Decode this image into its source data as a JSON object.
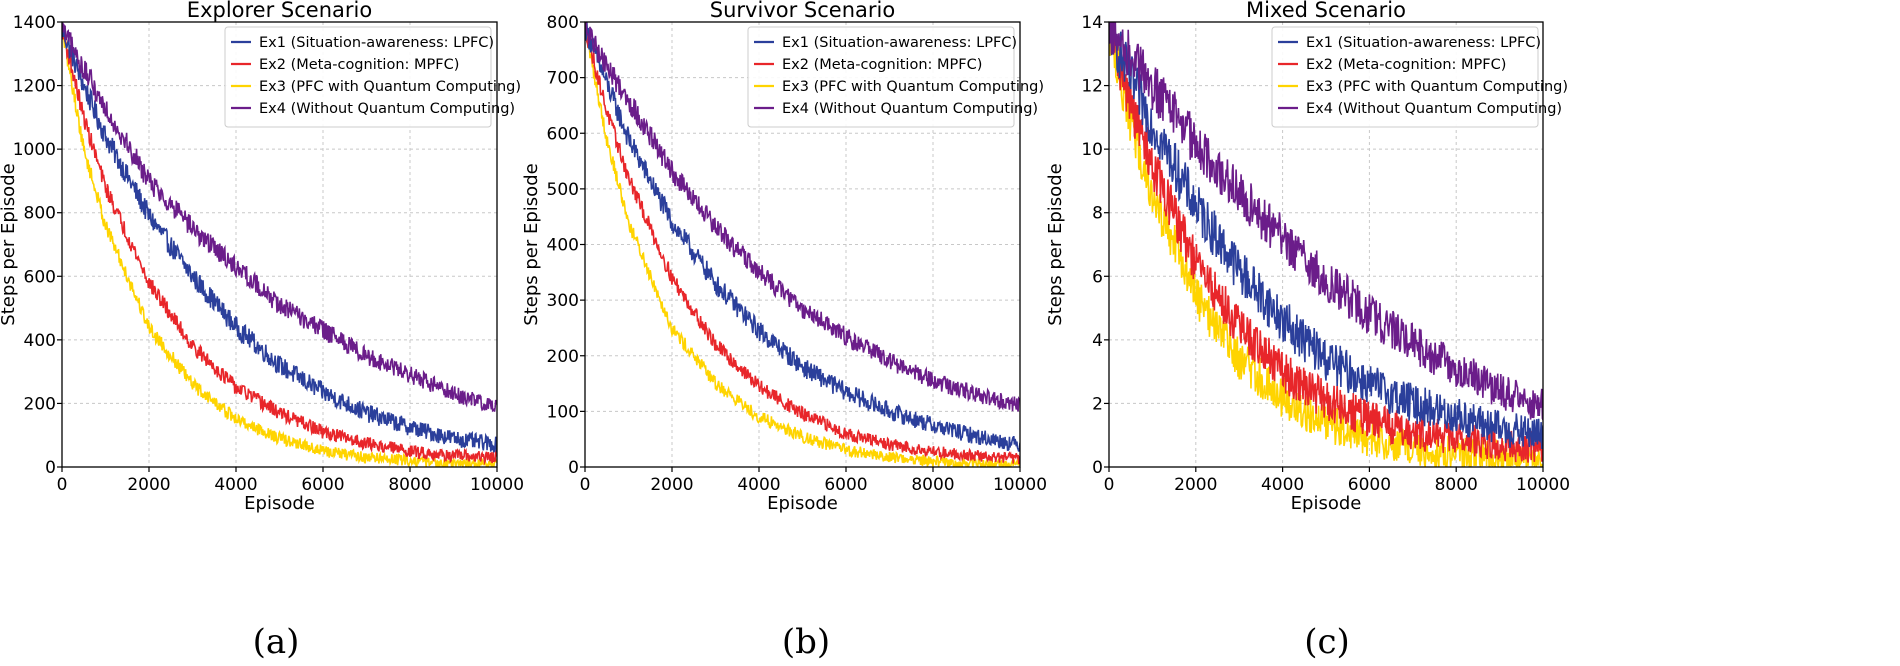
{
  "chart_data": [
    {
      "type": "line",
      "title": "Explorer Scenario",
      "xlabel": "Episode",
      "ylabel": "Steps per Episode",
      "xlim": [
        0,
        10000
      ],
      "ylim": [
        0,
        1400
      ],
      "xticks": [
        0,
        2000,
        4000,
        6000,
        8000,
        10000
      ],
      "yticks": [
        0,
        200,
        400,
        600,
        800,
        1000,
        1200,
        1400
      ],
      "grid": true,
      "legend": "top-right",
      "caption": "(a)",
      "series": [
        {
          "name": "Ex1 (Situation-awareness: LPFC)",
          "color": "#2b3f9b",
          "x": [
            0,
            500,
            1000,
            2000,
            3000,
            4000,
            5000,
            6000,
            7000,
            8000,
            9000,
            10000
          ],
          "values": [
            1380,
            1200,
            1040,
            790,
            600,
            440,
            320,
            235,
            170,
            125,
            90,
            70
          ],
          "noise": 25
        },
        {
          "name": "Ex2 (Meta-cognition: MPFC)",
          "color": "#e8262a",
          "x": [
            0,
            500,
            1000,
            2000,
            3000,
            4000,
            5000,
            6000,
            7000,
            8000,
            9000,
            10000
          ],
          "values": [
            1380,
            1100,
            880,
            580,
            380,
            250,
            170,
            110,
            75,
            50,
            35,
            30
          ],
          "noise": 18
        },
        {
          "name": "Ex3 (PFC with Quantum Computing)",
          "color": "#ffd400",
          "x": [
            0,
            500,
            1000,
            2000,
            3000,
            4000,
            5000,
            6000,
            7000,
            8000,
            9000,
            10000
          ],
          "values": [
            1380,
            1000,
            760,
            440,
            260,
            150,
            90,
            50,
            30,
            20,
            12,
            8
          ],
          "noise": 16
        },
        {
          "name": "Ex4 (Without Quantum Computing)",
          "color": "#6b1d8a",
          "x": [
            0,
            500,
            1000,
            2000,
            3000,
            4000,
            5000,
            6000,
            7000,
            8000,
            9000,
            10000
          ],
          "values": [
            1380,
            1250,
            1130,
            900,
            750,
            630,
            510,
            430,
            350,
            290,
            230,
            190
          ],
          "noise": 25
        }
      ]
    },
    {
      "type": "line",
      "title": "Survivor Scenario",
      "xlabel": "Episode",
      "ylabel": "Steps per Episode",
      "xlim": [
        0,
        10000
      ],
      "ylim": [
        0,
        800
      ],
      "xticks": [
        0,
        2000,
        4000,
        6000,
        8000,
        10000
      ],
      "yticks": [
        0,
        100,
        200,
        300,
        400,
        500,
        600,
        700,
        800
      ],
      "grid": true,
      "legend": "top-right",
      "caption": "(b)",
      "series": [
        {
          "name": "Ex1 (Situation-awareness: LPFC)",
          "color": "#2b3f9b",
          "x": [
            0,
            500,
            1000,
            2000,
            3000,
            4000,
            5000,
            6000,
            7000,
            8000,
            9000,
            10000
          ],
          "values": [
            790,
            690,
            590,
            440,
            330,
            245,
            180,
            135,
            100,
            75,
            55,
            40
          ],
          "noise": 14
        },
        {
          "name": "Ex2 (Meta-cognition: MPFC)",
          "color": "#e8262a",
          "x": [
            0,
            500,
            1000,
            2000,
            3000,
            4000,
            5000,
            6000,
            7000,
            8000,
            9000,
            10000
          ],
          "values": [
            790,
            640,
            520,
            340,
            220,
            145,
            95,
            60,
            40,
            28,
            20,
            15
          ],
          "noise": 10
        },
        {
          "name": "Ex3 (PFC with Quantum Computing)",
          "color": "#ffd400",
          "x": [
            0,
            500,
            1000,
            2000,
            3000,
            4000,
            5000,
            6000,
            7000,
            8000,
            9000,
            10000
          ],
          "values": [
            790,
            590,
            440,
            250,
            150,
            90,
            55,
            30,
            18,
            10,
            6,
            4
          ],
          "noise": 9
        },
        {
          "name": "Ex4 (Without Quantum Computing)",
          "color": "#6b1d8a",
          "x": [
            0,
            500,
            1000,
            2000,
            3000,
            4000,
            5000,
            6000,
            7000,
            8000,
            9000,
            10000
          ],
          "values": [
            790,
            720,
            660,
            530,
            430,
            350,
            285,
            235,
            190,
            155,
            130,
            110
          ],
          "noise": 14
        }
      ]
    },
    {
      "type": "line",
      "title": "Mixed Scenario",
      "xlabel": "Episode",
      "ylabel": "Steps per Episode",
      "xlim": [
        0,
        10000
      ],
      "ylim": [
        0,
        14
      ],
      "xticks": [
        0,
        2000,
        4000,
        6000,
        8000,
        10000
      ],
      "yticks": [
        0,
        2,
        4,
        6,
        8,
        10,
        12,
        14
      ],
      "grid": true,
      "legend": "top-right",
      "caption": "(c)",
      "series": [
        {
          "name": "Ex1 (Situation-awareness: LPFC)",
          "color": "#2b3f9b",
          "x": [
            0,
            500,
            1000,
            2000,
            3000,
            4000,
            5000,
            6000,
            7000,
            8000,
            9000,
            10000
          ],
          "values": [
            13.8,
            12.2,
            10.8,
            8.2,
            6.2,
            4.6,
            3.4,
            2.6,
            2.0,
            1.6,
            1.2,
            1.0
          ],
          "noise": 0.55
        },
        {
          "name": "Ex2 (Meta-cognition: MPFC)",
          "color": "#e8262a",
          "x": [
            0,
            500,
            1000,
            2000,
            3000,
            4000,
            5000,
            6000,
            7000,
            8000,
            9000,
            10000
          ],
          "values": [
            13.8,
            11.4,
            9.5,
            6.4,
            4.4,
            3.0,
            2.1,
            1.5,
            1.1,
            0.9,
            0.7,
            0.6
          ],
          "noise": 0.5
        },
        {
          "name": "Ex3 (PFC with Quantum Computing)",
          "color": "#ffd400",
          "x": [
            0,
            500,
            1000,
            2000,
            3000,
            4000,
            5000,
            6000,
            7000,
            8000,
            9000,
            10000
          ],
          "values": [
            13.8,
            10.8,
            8.6,
            5.4,
            3.4,
            2.2,
            1.4,
            0.9,
            0.6,
            0.4,
            0.3,
            0.25
          ],
          "noise": 0.5
        },
        {
          "name": "Ex4 (Without Quantum Computing)",
          "color": "#6b1d8a",
          "x": [
            0,
            500,
            1000,
            2000,
            3000,
            4000,
            5000,
            6000,
            7000,
            8000,
            9000,
            10000
          ],
          "values": [
            13.8,
            12.9,
            12.0,
            10.2,
            8.6,
            7.2,
            5.9,
            4.8,
            3.9,
            3.1,
            2.4,
            1.9
          ],
          "noise": 0.55
        }
      ]
    }
  ]
}
